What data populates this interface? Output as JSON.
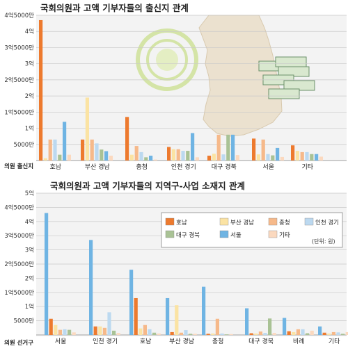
{
  "colors": {
    "호남": "#ed7a2e",
    "부산 경남": "#fbe3a3",
    "충청": "#f6b98a",
    "인천 경기": "#bcd9f0",
    "대구 경북": "#a9c295",
    "서울": "#6fb4e3",
    "기타": "#fbd9bf"
  },
  "chart_data": [
    {
      "type": "bar",
      "title": "국회의원과 고액 기부자들의 출신지 관계",
      "xlabel": "의원 출신지",
      "yticks": [
        "5000만",
        "1억",
        "1억5000만",
        "2억",
        "2억5000만",
        "3억",
        "3억5000만",
        "4억",
        "4억5000만"
      ],
      "ylim": [
        0,
        45000
      ],
      "categories": [
        "호남",
        "부산 경남",
        "충청",
        "인천 경기",
        "대구 경북",
        "서울",
        "기타"
      ],
      "series": [
        {
          "name": "호남",
          "values": [
            43500,
            6500,
            13500,
            4200,
            1500,
            6800,
            4700
          ]
        },
        {
          "name": "부산 경남",
          "values": [
            700,
            19500,
            1800,
            3500,
            2100,
            1900,
            3000
          ]
        },
        {
          "name": "충청",
          "values": [
            6500,
            6500,
            4500,
            3500,
            8000,
            6500,
            2600
          ]
        },
        {
          "name": "인천 경기",
          "values": [
            6500,
            5300,
            2600,
            3000,
            1900,
            2000,
            2600
          ]
        },
        {
          "name": "대구 경북",
          "values": [
            1800,
            3400,
            1000,
            3000,
            8000,
            1600,
            2000
          ]
        },
        {
          "name": "서울",
          "values": [
            12000,
            2900,
            1500,
            8500,
            8000,
            3900,
            2000
          ]
        },
        {
          "name": "기타",
          "values": [
            1800,
            1500,
            300,
            1000,
            1700,
            1100,
            1200
          ]
        }
      ]
    },
    {
      "type": "bar",
      "title": "국회의원과 고액 기부자들의 지역구-사업 소재지 관계",
      "xlabel": "의원 선거구",
      "yticks": [
        "5000만",
        "1억",
        "1억5000만",
        "2억",
        "2억5000만",
        "3억",
        "3억5000만",
        "4억",
        "4억5000만",
        "5억"
      ],
      "ylim": [
        0,
        50000
      ],
      "unit_note": "(단위: 원)",
      "legend_position": "top-right",
      "categories": [
        "서울",
        "인천 경기",
        "호남",
        "부산 경남",
        "충청",
        "대구 경북",
        "비례",
        "기타"
      ],
      "series": [
        {
          "name": "호남",
          "values": [
            5700,
            3000,
            13000,
            1000,
            400,
            600,
            1300,
            800
          ]
        },
        {
          "name": "부산 경남",
          "values": [
            3500,
            3000,
            2300,
            10500,
            500,
            500,
            1000,
            500
          ]
        },
        {
          "name": "충청",
          "values": [
            1800,
            2500,
            3500,
            800,
            5700,
            1200,
            2000,
            1000
          ]
        },
        {
          "name": "인천 경기",
          "values": [
            2000,
            8000,
            2000,
            1700,
            500,
            700,
            2000,
            900
          ]
        },
        {
          "name": "대구 경북",
          "values": [
            1800,
            1500,
            800,
            400,
            200,
            5800,
            600,
            400
          ]
        },
        {
          "name": "서울",
          "values": [
            43000,
            33500,
            23000,
            13000,
            17000,
            9400,
            6000,
            3000
          ]
        },
        {
          "name": "기타",
          "values": [
            900,
            700,
            500,
            400,
            300,
            700,
            1500,
            1000
          ]
        }
      ],
      "series_draw_order": [
        "서울",
        "호남",
        "부산 경남",
        "충청",
        "인천 경기",
        "대구 경북",
        "기타"
      ]
    }
  ]
}
